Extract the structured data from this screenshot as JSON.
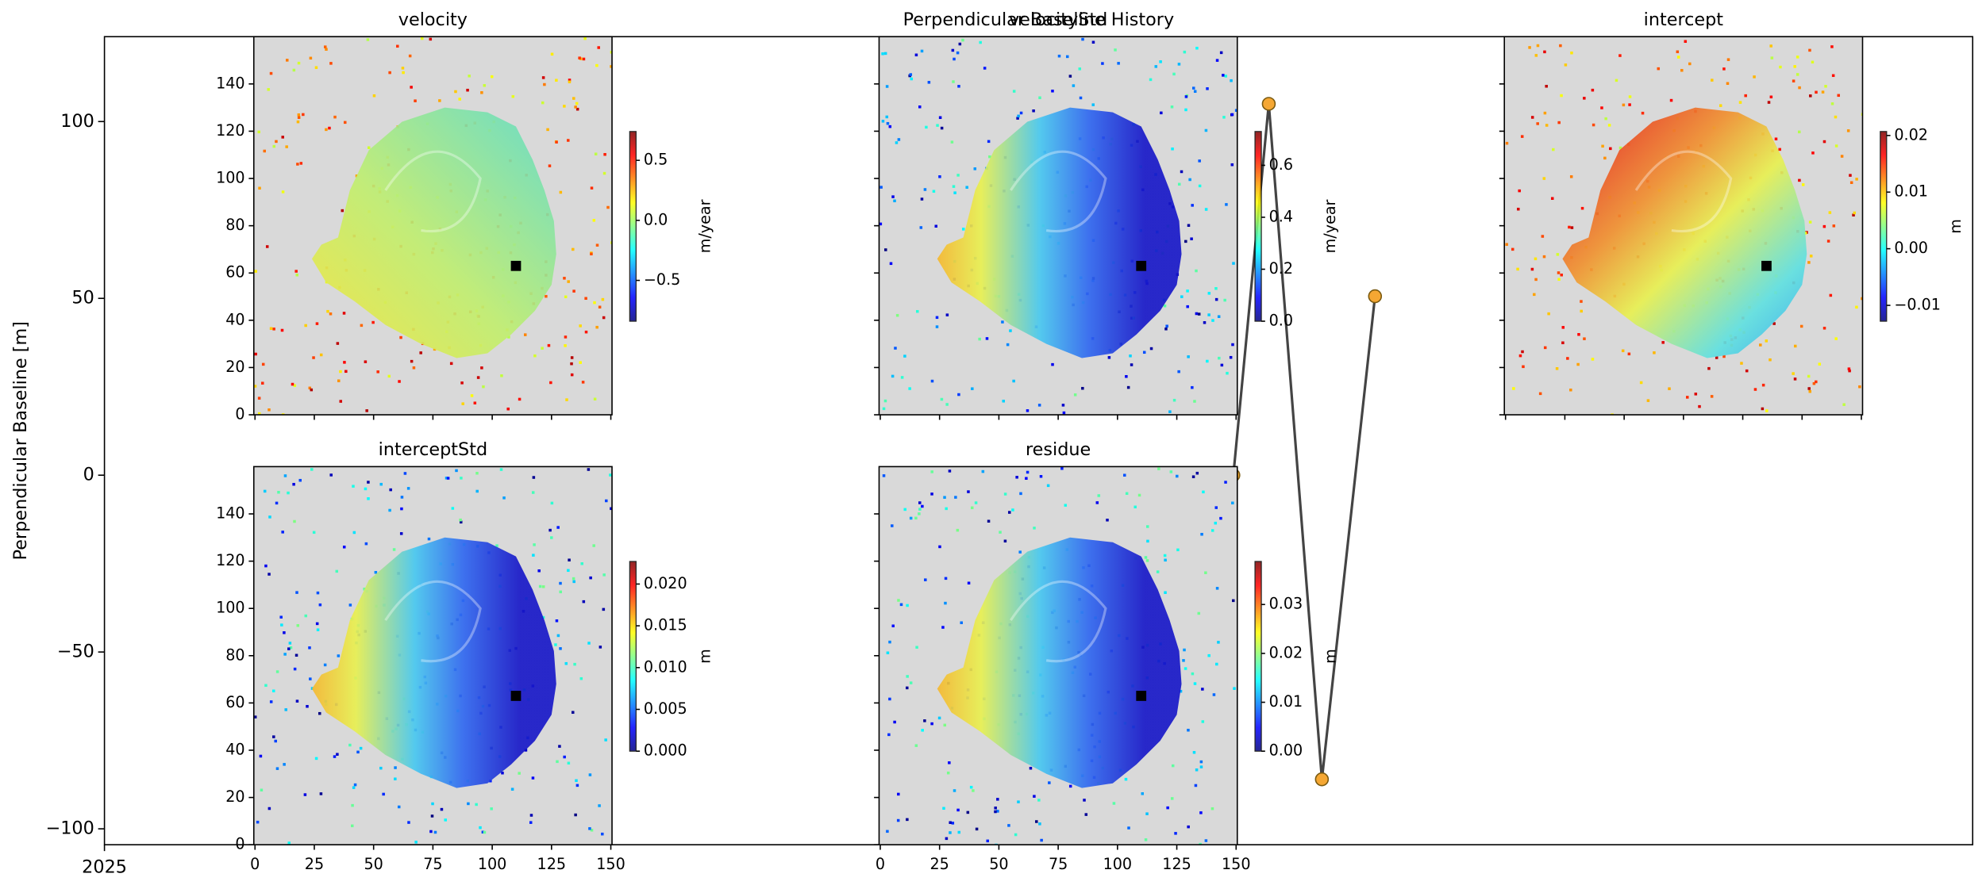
{
  "chart_data": [
    {
      "type": "line",
      "title": "Perpendicular Baseline History",
      "ylabel": "Perpendicular Baseline [m]",
      "x": [
        255,
        263,
        275,
        287
      ],
      "xlim": [
        0,
        422
      ],
      "xticks": [
        {
          "value": 0,
          "label": "2025"
        }
      ],
      "ylim": [
        -104.5,
        124
      ],
      "yticks": [
        {
          "value": -100,
          "label": "−100"
        },
        {
          "value": -50,
          "label": "−50"
        },
        0,
        50,
        100
      ],
      "series": [
        {
          "color": "#444444",
          "marker_color": "#f5a733",
          "values": [
            0,
            105,
            -86,
            50.6
          ]
        }
      ]
    },
    {
      "type": "image",
      "title": "velocity",
      "xlim": [
        -0.5,
        150.5
      ],
      "ylim": [
        0,
        160
      ],
      "xticks": [
        0,
        25,
        50,
        75,
        100,
        125,
        150
      ],
      "yticks": [
        0,
        20,
        40,
        60,
        80,
        100,
        120,
        140
      ],
      "show_xtick_labels": false,
      "show_ytick_labels": true,
      "reference_point": [
        110,
        63
      ],
      "colorbar": {
        "label": "m/year",
        "clim": [
          -0.84,
          0.74
        ],
        "ticks": [
          {
            "value": 0.5,
            "label": "0.5"
          },
          {
            "value": 0,
            "label": "0.0"
          },
          {
            "value": -0.5,
            "label": "−0.5"
          }
        ]
      }
    },
    {
      "type": "image",
      "title": "velocityStd",
      "xlim": [
        -0.5,
        150.5
      ],
      "ylim": [
        0,
        160
      ],
      "xticks": [
        0,
        25,
        50,
        75,
        100,
        125,
        150
      ],
      "yticks": [
        0,
        20,
        40,
        60,
        80,
        100,
        120,
        140
      ],
      "show_xtick_labels": false,
      "show_ytick_labels": false,
      "reference_point": [
        110,
        63
      ],
      "colorbar": {
        "label": "m/year",
        "clim": [
          0,
          0.73
        ],
        "ticks": [
          {
            "value": 0,
            "label": "0.0"
          },
          0.2,
          0.4,
          0.6
        ]
      }
    },
    {
      "type": "image",
      "title": "intercept",
      "xlim": [
        -0.5,
        150.5
      ],
      "ylim": [
        0,
        160
      ],
      "xticks": [
        0,
        25,
        50,
        75,
        100,
        125,
        150
      ],
      "yticks": [
        0,
        20,
        40,
        60,
        80,
        100,
        120,
        140
      ],
      "show_xtick_labels": false,
      "show_ytick_labels": false,
      "reference_point": [
        110,
        63
      ],
      "colorbar": {
        "label": "m",
        "clim": [
          -0.0128,
          0.0207
        ],
        "ticks": [
          {
            "value": 0.02,
            "label": "0.02"
          },
          {
            "value": 0.01,
            "label": "0.01"
          },
          {
            "value": 0,
            "label": "0.00"
          },
          {
            "value": -0.01,
            "label": "−0.01"
          }
        ]
      }
    },
    {
      "type": "image",
      "title": "interceptStd",
      "xlim": [
        -0.5,
        150.5
      ],
      "ylim": [
        0,
        160
      ],
      "xticks": [
        0,
        25,
        50,
        75,
        100,
        125,
        150
      ],
      "yticks": [
        0,
        20,
        40,
        60,
        80,
        100,
        120,
        140
      ],
      "show_xtick_labels": true,
      "show_ytick_labels": true,
      "reference_point": [
        110,
        63
      ],
      "colorbar": {
        "label": "m",
        "clim": [
          0,
          0.0227
        ],
        "ticks": [
          {
            "value": 0,
            "label": "0.000"
          },
          0.005,
          {
            "value": 0.01,
            "label": "0.010"
          },
          0.015,
          {
            "value": 0.02,
            "label": "0.020"
          }
        ]
      }
    },
    {
      "type": "image",
      "title": "residue",
      "xlim": [
        -0.5,
        150.5
      ],
      "ylim": [
        0,
        160
      ],
      "xticks": [
        0,
        25,
        50,
        75,
        100,
        125,
        150
      ],
      "yticks": [
        0,
        20,
        40,
        60,
        80,
        100,
        120,
        140
      ],
      "show_xtick_labels": true,
      "show_ytick_labels": false,
      "reference_point": [
        110,
        63
      ],
      "colorbar": {
        "label": "m",
        "clim": [
          0,
          0.0388
        ],
        "ticks": [
          {
            "value": 0,
            "label": "0.00"
          },
          0.01,
          0.02,
          0.03
        ]
      }
    }
  ]
}
